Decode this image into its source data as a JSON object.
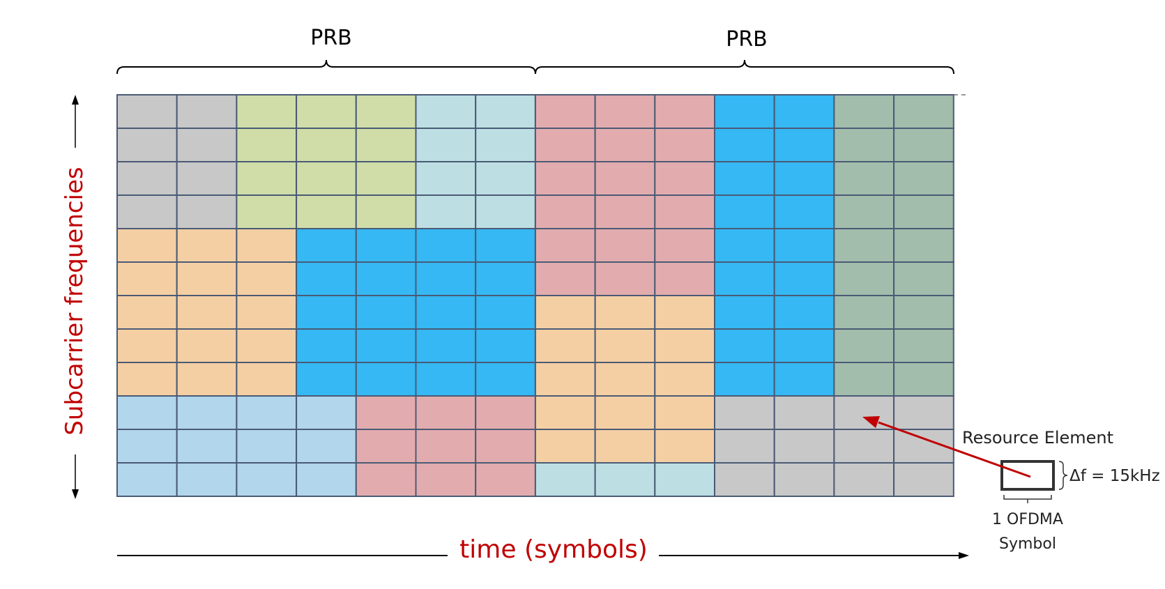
{
  "labels": {
    "prb_left": "PRB",
    "prb_right": "PRB",
    "y_axis": "Subcarrier frequencies",
    "x_axis": "time (symbols)",
    "resource_element": "Resource Element",
    "delta_f": "Δf = 15kHz",
    "ofdma_line1": "1 OFDMA",
    "ofdma_line2": "Symbol"
  },
  "colors": {
    "gray": "#c8c8c9",
    "green": "#d0dda8",
    "cyan": "#bddfe3",
    "pink": "#e2acae",
    "blue": "#35b8f3",
    "sage": "#a2bdac",
    "orange": "#f4cfa4",
    "lightblue": "#b2d6ec",
    "gridline": "#4a5a75",
    "label_red": "#c00000",
    "arrow_red": "#c00000"
  },
  "grid": {
    "rows": 12,
    "cols": 14,
    "layout": [
      [
        "gray",
        "gray",
        "green",
        "green",
        "green",
        "cyan",
        "cyan",
        "pink",
        "pink",
        "pink",
        "blue",
        "blue",
        "sage",
        "sage"
      ],
      [
        "gray",
        "gray",
        "green",
        "green",
        "green",
        "cyan",
        "cyan",
        "pink",
        "pink",
        "pink",
        "blue",
        "blue",
        "sage",
        "sage"
      ],
      [
        "gray",
        "gray",
        "green",
        "green",
        "green",
        "cyan",
        "cyan",
        "pink",
        "pink",
        "pink",
        "blue",
        "blue",
        "sage",
        "sage"
      ],
      [
        "gray",
        "gray",
        "green",
        "green",
        "green",
        "cyan",
        "cyan",
        "pink",
        "pink",
        "pink",
        "blue",
        "blue",
        "sage",
        "sage"
      ],
      [
        "orange",
        "orange",
        "orange",
        "blue",
        "blue",
        "blue",
        "blue",
        "pink",
        "pink",
        "pink",
        "blue",
        "blue",
        "sage",
        "sage"
      ],
      [
        "orange",
        "orange",
        "orange",
        "blue",
        "blue",
        "blue",
        "blue",
        "pink",
        "pink",
        "pink",
        "blue",
        "blue",
        "sage",
        "sage"
      ],
      [
        "orange",
        "orange",
        "orange",
        "blue",
        "blue",
        "blue",
        "blue",
        "orange",
        "orange",
        "orange",
        "blue",
        "blue",
        "sage",
        "sage"
      ],
      [
        "orange",
        "orange",
        "orange",
        "blue",
        "blue",
        "blue",
        "blue",
        "orange",
        "orange",
        "orange",
        "blue",
        "blue",
        "sage",
        "sage"
      ],
      [
        "orange",
        "orange",
        "orange",
        "blue",
        "blue",
        "blue",
        "blue",
        "orange",
        "orange",
        "orange",
        "blue",
        "blue",
        "sage",
        "sage"
      ],
      [
        "lightblue",
        "lightblue",
        "lightblue",
        "lightblue",
        "pink",
        "pink",
        "pink",
        "orange",
        "orange",
        "orange",
        "gray",
        "gray",
        "gray",
        "gray"
      ],
      [
        "lightblue",
        "lightblue",
        "lightblue",
        "lightblue",
        "pink",
        "pink",
        "pink",
        "orange",
        "orange",
        "orange",
        "gray",
        "gray",
        "gray",
        "gray"
      ],
      [
        "lightblue",
        "lightblue",
        "lightblue",
        "lightblue",
        "pink",
        "pink",
        "pink",
        "cyan",
        "cyan",
        "cyan",
        "gray",
        "gray",
        "gray",
        "gray"
      ]
    ]
  }
}
